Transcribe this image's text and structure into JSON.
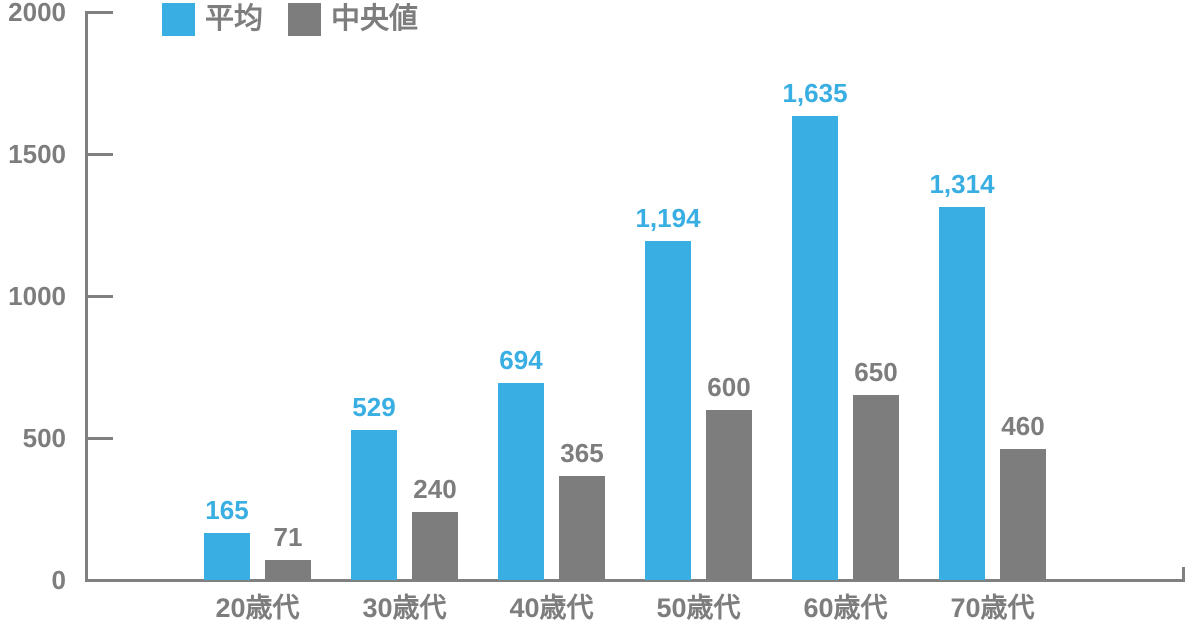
{
  "chart_data": {
    "type": "bar",
    "title": "",
    "xlabel": "",
    "ylabel": "",
    "categories": [
      "20歳代",
      "30歳代",
      "40歳代",
      "50歳代",
      "60歳代",
      "70歳代"
    ],
    "series": [
      {
        "key": "average",
        "name": "平均",
        "color": "#39aee2",
        "values": [
          165,
          529,
          694,
          1194,
          1635,
          1314
        ],
        "labels": [
          "165",
          "529",
          "694",
          "1,194",
          "1,635",
          "1,314"
        ]
      },
      {
        "key": "median",
        "name": "中央値",
        "color": "#7d7d7d",
        "values": [
          71,
          240,
          365,
          600,
          650,
          460
        ],
        "labels": [
          "71",
          "240",
          "365",
          "600",
          "650",
          "460"
        ]
      }
    ],
    "ylim": [
      0,
      2000
    ],
    "yticks": [
      0,
      500,
      1000,
      1500,
      2000
    ],
    "ytick_labels": [
      "0",
      "500",
      "1000",
      "1500",
      "2000"
    ],
    "grid": false,
    "legend_position": "top-left",
    "axis_color": "#808080",
    "text_color": "#7d7d7d",
    "background_color": "#ffffff"
  }
}
